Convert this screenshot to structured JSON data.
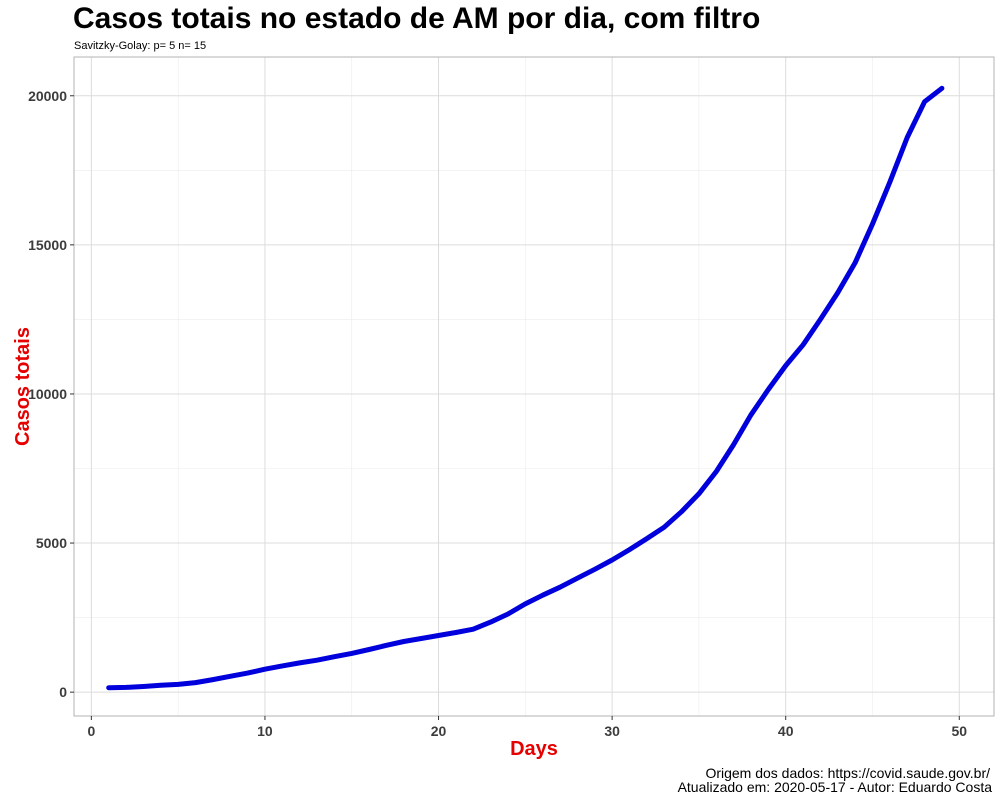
{
  "chart_data": {
    "type": "line",
    "title": "Casos totais no estado de AM por dia, com filtro",
    "subtitle": "Savitzky-Golay: p= 5 n= 15",
    "xlabel": "Days",
    "ylabel": "Casos totais",
    "xlim": [
      -1,
      52
    ],
    "ylim": [
      -800,
      21300
    ],
    "x_ticks": [
      0,
      10,
      20,
      30,
      40,
      50
    ],
    "y_ticks": [
      0,
      5000,
      10000,
      15000,
      20000
    ],
    "grid": true,
    "colors": {
      "line": "#0000dd",
      "axis_title": "#e60000",
      "grid": "#dcdcdc",
      "panel_border": "#b3b3b3"
    },
    "series": [
      {
        "x": [
          1,
          2,
          3,
          4,
          5,
          6,
          7,
          8,
          9,
          10,
          11,
          12,
          13,
          14,
          15,
          16,
          17,
          18,
          19,
          20,
          21,
          22,
          23,
          24,
          25,
          26,
          27,
          28,
          29,
          30,
          31,
          32,
          33,
          34,
          35,
          36,
          37,
          38,
          39,
          40,
          41,
          42,
          43,
          44,
          45,
          46,
          47,
          48,
          49
        ],
        "values": [
          150,
          160,
          190,
          230,
          260,
          320,
          420,
          530,
          640,
          770,
          880,
          980,
          1070,
          1190,
          1300,
          1430,
          1570,
          1700,
          1800,
          1900,
          2000,
          2110,
          2350,
          2620,
          2960,
          3250,
          3520,
          3820,
          4120,
          4430,
          4780,
          5150,
          5530,
          6050,
          6650,
          7400,
          8300,
          9300,
          10150,
          10950,
          11650,
          12500,
          13400,
          14400,
          15700,
          17100,
          18600,
          19800,
          20250
        ]
      }
    ]
  },
  "caption": {
    "source": "Origem dos dados: https://covid.saude.gov.br/",
    "updated": "Atualizado em: 2020-05-17    -  Autor: Eduardo Costa"
  }
}
